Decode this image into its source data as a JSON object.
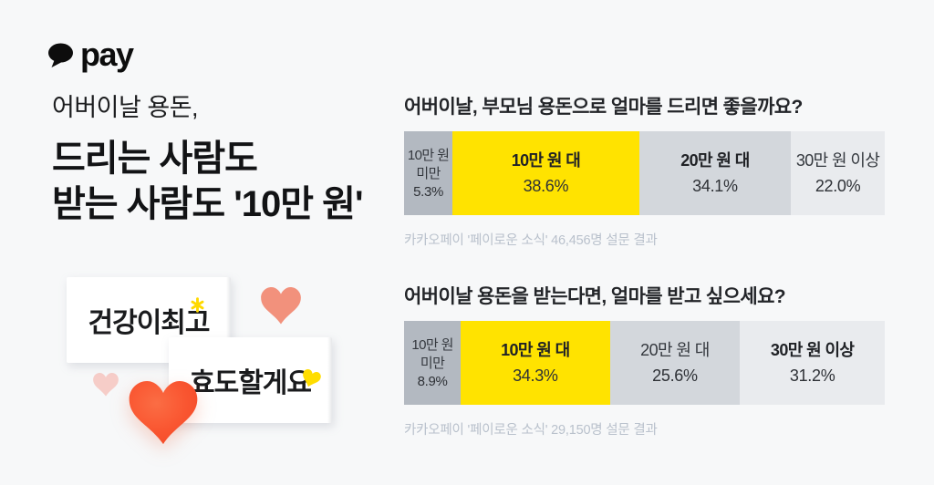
{
  "brand": {
    "logo_text": "pay",
    "logo_icon": "speech-bubble-icon"
  },
  "headline": {
    "eyebrow": "어버이날 용돈,",
    "line1": "드리는 사람도",
    "line2": "받는 사람도 '10만 원'"
  },
  "cards": [
    {
      "text": "건강이최고",
      "doodle": "sparkle"
    },
    {
      "text": "효도할게요",
      "doodle": "heart"
    }
  ],
  "colors": {
    "background": "#f7f8f9",
    "accent_yellow": "#ffe300",
    "segment_gray_dark": "#b3b9c1",
    "segment_gray_mid": "#d3d7dc",
    "segment_gray_light": "#e9ebee",
    "heart_red": "#f95530",
    "heart_salmon": "#f2917c",
    "heart_pink": "#f6cdc8",
    "doodle_yellow": "#ffd900",
    "caption_gray": "#b9c1cc"
  },
  "chart_data": [
    {
      "type": "bar",
      "orientation": "horizontal-stacked",
      "title": "어버이날, 부모님 용돈으로 얼마를 드리면 좋을까요?",
      "caption": "카카오페이 '페이로운 소식' 46,456명 설문 결과",
      "unit": "%",
      "categories": [
        "10만 원 미만",
        "10만 원 대",
        "20만 원 대",
        "30만 원 이상"
      ],
      "values": [
        5.3,
        38.6,
        34.1,
        22.0
      ],
      "segments": [
        {
          "label": "10만 원 미만",
          "value": "5.3%",
          "color": "#b3b9c1",
          "bold": false,
          "display_pct": 10.1
        },
        {
          "label": "10만 원 대",
          "value": "38.6%",
          "color": "#ffe300",
          "bold": true,
          "display_pct": 38.8
        },
        {
          "label": "20만 원 대",
          "value": "34.1%",
          "color": "#d3d7dc",
          "bold": true,
          "display_pct": 31.6
        },
        {
          "label": "30만 원 이상",
          "value": "22.0%",
          "color": "#e9ebee",
          "bold": false,
          "display_pct": 19.5
        }
      ]
    },
    {
      "type": "bar",
      "orientation": "horizontal-stacked",
      "title": "어버이날 용돈을 받는다면, 얼마를 받고 싶으세요?",
      "caption": "카카오페이 '페이로운 소식' 29,150명 설문 결과",
      "unit": "%",
      "categories": [
        "10만 원 미만",
        "10만 원 대",
        "20만 원 대",
        "30만 원 이상"
      ],
      "values": [
        8.9,
        34.3,
        25.6,
        31.2
      ],
      "segments": [
        {
          "label": "10만 원 미만",
          "value": "8.9%",
          "color": "#b3b9c1",
          "bold": false,
          "display_pct": 11.8
        },
        {
          "label": "10만 원 대",
          "value": "34.3%",
          "color": "#ffe300",
          "bold": true,
          "display_pct": 31.0
        },
        {
          "label": "20만 원 대",
          "value": "25.6%",
          "color": "#d3d7dc",
          "bold": false,
          "display_pct": 27.1
        },
        {
          "label": "30만 원 이상",
          "value": "31.2%",
          "color": "#e9ebee",
          "bold": true,
          "display_pct": 30.1
        }
      ]
    }
  ]
}
